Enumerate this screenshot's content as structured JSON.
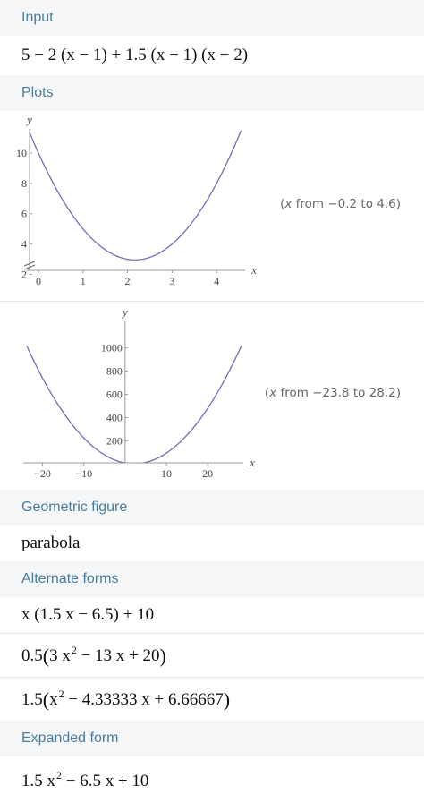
{
  "input": {
    "header": "Input",
    "expression": "5 − 2 (x − 1) + 1.5 (x − 1) (x − 2)"
  },
  "plots": {
    "header": "Plots",
    "plot1": {
      "range_var": "x",
      "range_text": " from −0.2 to 4.6)",
      "range_open": "(",
      "xlabel": "x",
      "ylabel": "y"
    },
    "plot2": {
      "range_var": "x",
      "range_text": " from −23.8 to 28.2)",
      "range_open": "(",
      "xlabel": "x",
      "ylabel": "y"
    }
  },
  "chart_data": [
    {
      "type": "line",
      "function": "1.5x^2 - 6.5x + 10",
      "xlim": [
        -0.2,
        4.6
      ],
      "ylim": [
        1.5,
        11
      ],
      "xticks": [
        "0",
        "1",
        "2",
        "3",
        "4"
      ],
      "yticks": [
        "2",
        "4",
        "6",
        "8",
        "10"
      ],
      "xtick_values": [
        0,
        1,
        2,
        3,
        4
      ],
      "ytick_values": [
        2,
        4,
        6,
        8,
        10
      ],
      "xlabel": "x",
      "ylabel": "y",
      "axis_break": true,
      "line_color": "#6f6fb8"
    },
    {
      "type": "line",
      "function": "1.5x^2 - 6.5x + 10",
      "xlim": [
        -23.8,
        28.2
      ],
      "ylim": [
        -50,
        1150
      ],
      "xticks": [
        "−20",
        "−10",
        "10",
        "20"
      ],
      "yticks": [
        "200",
        "400",
        "600",
        "800",
        "1000"
      ],
      "xtick_values": [
        -20,
        -10,
        10,
        20
      ],
      "ytick_values": [
        200,
        400,
        600,
        800,
        1000
      ],
      "xlabel": "x",
      "ylabel": "y",
      "line_color": "#6f6fb8"
    }
  ],
  "geometric": {
    "header": "Geometric figure",
    "value": "parabola"
  },
  "alternate": {
    "header": "Alternate forms",
    "form1": "x (1.5 x − 6.5) + 10",
    "form2_coef": "0.5",
    "form2_a": "3 x",
    "form2_exp": "2",
    "form2_b": " − 13 x + 20",
    "form3_coef": "1.5",
    "form3_a": "x",
    "form3_exp": "2",
    "form3_b": " − 4.33333 x + 6.66667"
  },
  "expanded": {
    "header": "Expanded form",
    "value_a": "1.5 x",
    "value_exp": "2",
    "value_b": " − 6.5 x + 10"
  },
  "colors": {
    "header_text": "#4a7d9f",
    "header_bg": "#f5f6f7",
    "curve": "#6f6fb8"
  }
}
